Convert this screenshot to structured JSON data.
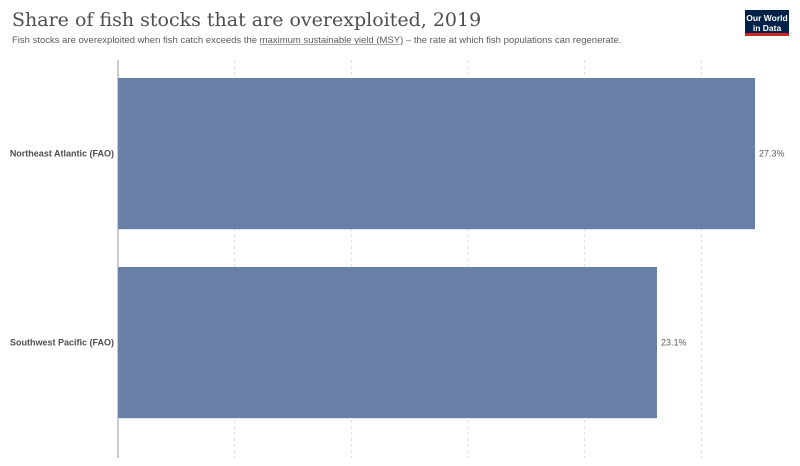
{
  "header": {
    "title": "Share of fish stocks that are overexploited, 2019",
    "subtitle_before": "Fish stocks are overexploited when fish catch exceeds the ",
    "subtitle_link": "maximum sustainable yield (MSY)",
    "subtitle_after": " – the rate at which fish populations can regenerate.",
    "logo_line1": "Our World",
    "logo_line2": "in Data"
  },
  "chart_data": {
    "type": "bar",
    "orientation": "horizontal",
    "categories": [
      "Northeast Atlantic (FAO)",
      "Southwest Pacific (FAO)"
    ],
    "values": [
      27.3,
      23.1
    ],
    "value_labels": [
      "27.3%",
      "23.1%"
    ],
    "xlim": [
      0,
      28
    ],
    "grid": true,
    "bar_color": "#6a7fa8"
  }
}
